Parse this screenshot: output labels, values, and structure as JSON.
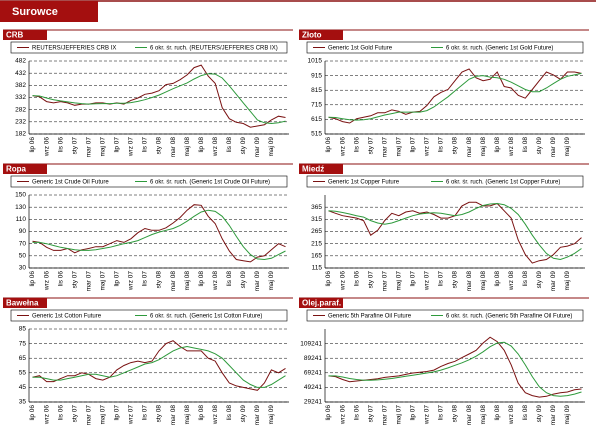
{
  "header": {
    "title": "Surowce"
  },
  "chart_data": [
    {
      "type": "line",
      "title": "CRB",
      "categories": [
        "lip 06",
        null,
        "wrz 06",
        null,
        "lis 06",
        null,
        "sty 07",
        null,
        "mar 07",
        null,
        "maj 07",
        null,
        "lip 07",
        null,
        "wrz 07",
        null,
        "lis 07",
        null,
        "sty 08",
        null,
        "mar 08",
        null,
        "maj 08",
        null,
        "lip 08",
        null,
        "wrz 08",
        null,
        "lis 08",
        null,
        "sty 09",
        null,
        "mar 09",
        null,
        "maj 09",
        null,
        null
      ],
      "series": [
        {
          "name": "REUTERS/JEFFERIES CRB IX",
          "color": "#7a1212",
          "values": [
            340,
            335,
            315,
            310,
            315,
            310,
            300,
            305,
            305,
            310,
            310,
            305,
            310,
            305,
            320,
            330,
            345,
            350,
            360,
            385,
            390,
            405,
            425,
            455,
            465,
            420,
            390,
            290,
            245,
            230,
            225,
            210,
            215,
            220,
            240,
            255,
            250
          ]
        },
        {
          "name": "6 okr. śr. ruch. (REUTERS/JEFFERIES CRB IX)",
          "color": "#2e9a3c",
          "values": [
            340,
            338,
            330,
            323,
            318,
            314,
            310,
            307,
            305,
            306,
            307,
            307,
            308,
            308,
            311,
            316,
            323,
            332,
            342,
            355,
            368,
            380,
            392,
            408,
            422,
            430,
            428,
            412,
            380,
            345,
            310,
            275,
            240,
            228,
            225,
            228,
            235
          ]
        }
      ],
      "ylim": [
        182,
        482
      ],
      "yticks": [
        182,
        232,
        282,
        332,
        382,
        432,
        482
      ],
      "grid": true
    },
    {
      "type": "line",
      "title": "Złoto",
      "categories": [
        "lip 06",
        null,
        "wrz 06",
        null,
        "lis 06",
        null,
        "sty 07",
        null,
        "mar 07",
        null,
        "maj 07",
        null,
        "lip 07",
        null,
        "wrz 07",
        null,
        "lis 07",
        null,
        "sty 08",
        null,
        "mar 08",
        null,
        "maj 08",
        null,
        "lip 08",
        null,
        "wrz 08",
        null,
        "lis 08",
        null,
        "sty 09",
        null,
        "mar 09",
        null,
        "maj 09",
        null,
        null
      ],
      "series": [
        {
          "name": "Generic 1st Gold Future",
          "color": "#7a1212",
          "values": [
            630,
            620,
            600,
            590,
            620,
            630,
            640,
            660,
            660,
            680,
            670,
            650,
            665,
            670,
            710,
            770,
            800,
            820,
            880,
            940,
            960,
            900,
            880,
            890,
            940,
            840,
            830,
            780,
            760,
            820,
            880,
            940,
            920,
            890,
            940,
            940,
            930
          ]
        },
        {
          "name": "6 okr. śr. ruch. (Generic 1st Gold Future)",
          "color": "#2e9a3c",
          "values": [
            630,
            628,
            620,
            612,
            610,
            612,
            620,
            632,
            645,
            655,
            665,
            665,
            665,
            665,
            675,
            700,
            735,
            770,
            810,
            850,
            890,
            910,
            915,
            905,
            900,
            890,
            870,
            845,
            820,
            805,
            805,
            830,
            860,
            890,
            910,
            920,
            930
          ]
        }
      ],
      "ylim": [
        515,
        1015
      ],
      "yticks": [
        515,
        615,
        715,
        815,
        915,
        1015
      ],
      "grid": true
    },
    {
      "type": "line",
      "title": "Ropa",
      "categories": [
        "lip 06",
        null,
        "wrz 06",
        null,
        "lis 06",
        null,
        "sty 07",
        null,
        "mar 07",
        null,
        "maj 07",
        null,
        "lip 07",
        null,
        "wrz 07",
        null,
        "lis 07",
        null,
        "sty 08",
        null,
        "mar 08",
        null,
        "maj 08",
        null,
        "lip 08",
        null,
        "wrz 08",
        null,
        "lis 08",
        null,
        "sty 09",
        null,
        "mar 09",
        null,
        "maj 09",
        null,
        null
      ],
      "series": [
        {
          "name": "Generic 1st Crude Oil Future",
          "color": "#7a1212",
          "values": [
            74,
            72,
            64,
            59,
            59,
            62,
            55,
            60,
            62,
            65,
            65,
            70,
            75,
            72,
            78,
            88,
            95,
            92,
            92,
            96,
            104,
            113,
            125,
            134,
            133,
            115,
            103,
            78,
            58,
            44,
            42,
            40,
            48,
            50,
            60,
            70,
            65
          ]
        },
        {
          "name": "6 okr. śr. ruch. (Generic 1st Crude Oil Future)",
          "color": "#2e9a3c",
          "values": [
            72,
            72,
            70,
            67,
            64,
            62,
            60,
            59,
            59,
            60,
            62,
            64,
            67,
            70,
            72,
            75,
            80,
            85,
            89,
            92,
            95,
            100,
            107,
            115,
            122,
            125,
            123,
            115,
            100,
            82,
            65,
            52,
            45,
            44,
            46,
            52,
            58
          ]
        }
      ],
      "ylim": [
        30,
        150
      ],
      "yticks": [
        30,
        50,
        70,
        90,
        110,
        130,
        150
      ],
      "grid": true
    },
    {
      "type": "line",
      "title": "Miedź",
      "categories": [
        "lip 06",
        null,
        "wrz 06",
        null,
        "lis 06",
        null,
        "sty 07",
        null,
        "mar 07",
        null,
        "maj 07",
        null,
        "lip 07",
        null,
        "wrz 07",
        null,
        "lis 07",
        null,
        "sty 08",
        null,
        "mar 08",
        null,
        "maj 08",
        null,
        "lip 08",
        null,
        "wrz 08",
        null,
        "lis 08",
        null,
        "sty 09",
        null,
        "mar 09",
        null,
        "maj 09",
        null,
        null
      ],
      "series": [
        {
          "name": "Generic 1st Copper Future",
          "color": "#7a1212",
          "values": [
            350,
            340,
            330,
            325,
            320,
            310,
            250,
            270,
            310,
            340,
            330,
            345,
            350,
            340,
            345,
            335,
            320,
            320,
            330,
            370,
            385,
            385,
            370,
            370,
            380,
            350,
            320,
            230,
            170,
            135,
            145,
            150,
            170,
            200,
            205,
            215,
            240
          ]
        },
        {
          "name": "6 okr. śr. ruch. (Generic 1st Copper Future)",
          "color": "#2e9a3c",
          "values": [
            350,
            348,
            343,
            337,
            330,
            324,
            310,
            300,
            295,
            300,
            310,
            320,
            330,
            337,
            340,
            342,
            340,
            335,
            330,
            335,
            345,
            360,
            372,
            378,
            380,
            375,
            360,
            335,
            295,
            250,
            210,
            175,
            155,
            150,
            160,
            175,
            195
          ]
        }
      ],
      "ylim": [
        115,
        415
      ],
      "yticks": [
        115,
        165,
        215,
        265,
        315,
        365
      ],
      "grid": true
    },
    {
      "type": "line",
      "title": "Bawełna",
      "categories": [
        "lip 06",
        null,
        "wrz 06",
        null,
        "lis 06",
        null,
        "sty 07",
        null,
        "mar 07",
        null,
        "maj 07",
        null,
        "lip 07",
        null,
        "wrz 07",
        null,
        "lis 07",
        null,
        "sty 08",
        null,
        "mar 08",
        null,
        "maj 08",
        null,
        "lip 08",
        null,
        "wrz 08",
        null,
        "lis 08",
        null,
        "sty 09",
        null,
        "mar 09",
        null,
        "maj 09",
        null,
        null
      ],
      "series": [
        {
          "name": "Generic 1st Cotton Future",
          "color": "#7a1212",
          "values": [
            52,
            53,
            49,
            49,
            51,
            53,
            53,
            55,
            54,
            51,
            50,
            52,
            57,
            60,
            62,
            63,
            62,
            63,
            70,
            75,
            77,
            73,
            70,
            70,
            70,
            65,
            63,
            55,
            48,
            46,
            45,
            44,
            43,
            48,
            57,
            55,
            58
          ]
        },
        {
          "name": "6 okr. śr. ruch. (Generic 1st Cotton Future)",
          "color": "#2e9a3c",
          "values": [
            52,
            52,
            51,
            50,
            50,
            51,
            52,
            53,
            54,
            54,
            53,
            52,
            53,
            55,
            57,
            59,
            61,
            62,
            64,
            67,
            70,
            72,
            73,
            72,
            71,
            70,
            68,
            65,
            60,
            55,
            50,
            47,
            45,
            45,
            47,
            50,
            53
          ]
        }
      ],
      "ylim": [
        35,
        85
      ],
      "yticks": [
        35,
        45,
        55,
        65,
        75,
        85
      ],
      "grid": true
    },
    {
      "type": "line",
      "title": "Olej.paraf.",
      "categories": [
        "lip 06",
        null,
        "wrz 06",
        null,
        "lis 06",
        null,
        "sty 07",
        null,
        "mar 07",
        null,
        "maj 07",
        null,
        "lip 07",
        null,
        "wrz 07",
        null,
        "lis 07",
        null,
        "sty 08",
        null,
        "mar 08",
        null,
        "maj 08",
        null,
        "lip 08",
        null,
        "wrz 08",
        null,
        "lis 08",
        null,
        "sty 09",
        null,
        "mar 09",
        null,
        "maj 09",
        null,
        null
      ],
      "series": [
        {
          "name": "Generic 5th Parafine Oil Future",
          "color": "#7a1212",
          "values": [
            65000,
            64000,
            60000,
            57000,
            58000,
            59000,
            60000,
            61000,
            63000,
            64000,
            65000,
            67000,
            69000,
            70000,
            71000,
            73000,
            78000,
            82000,
            85000,
            90000,
            95000,
            100000,
            110000,
            118000,
            112000,
            100000,
            80000,
            55000,
            42000,
            38000,
            36000,
            37000,
            40000,
            42000,
            43000,
            46000,
            47000
          ]
        },
        {
          "name": "6 okr. śr. ruch. (Generic 5th Parafine Oil Future)",
          "color": "#2e9a3c",
          "values": [
            65000,
            65000,
            63500,
            61500,
            60000,
            59000,
            59000,
            59500,
            60500,
            61500,
            63000,
            64500,
            66000,
            67500,
            69000,
            70500,
            73000,
            76000,
            79500,
            83000,
            87000,
            92000,
            98000,
            105000,
            110000,
            111000,
            106000,
            95000,
            80000,
            64000,
            50000,
            42000,
            38000,
            37000,
            38000,
            40000,
            43000
          ]
        }
      ],
      "ylim": [
        29241,
        129241
      ],
      "yticks": [
        29241,
        49241,
        69241,
        89241,
        109241
      ],
      "grid": true
    }
  ]
}
